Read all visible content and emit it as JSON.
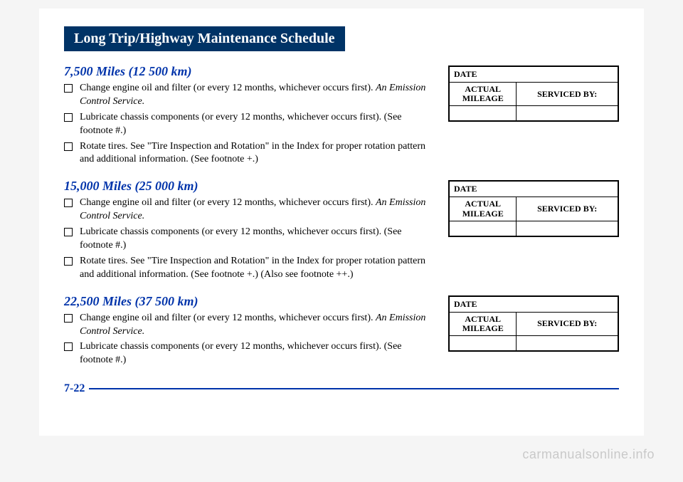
{
  "title": "Long Trip/Highway Maintenance Schedule",
  "pageNumber": "7-22",
  "watermark": "carmanualsonline.info",
  "recordLabels": {
    "date": "DATE",
    "mileage": "ACTUAL MILEAGE",
    "servicedBy": "SERVICED BY:"
  },
  "sections": [
    {
      "heading": "7,500 Miles (12 500 km)",
      "items": [
        {
          "text": "Change engine oil and filter (or every 12 months, whichever occurs first).",
          "note": "An Emission Control Service."
        },
        {
          "text": "Lubricate chassis components (or every 12 months, whichever occurs first). (See footnote #.)"
        },
        {
          "text": "Rotate tires. See \"Tire Inspection and Rotation\" in the Index for proper rotation pattern and additional information. (See footnote +.)"
        }
      ]
    },
    {
      "heading": "15,000 Miles (25 000 km)",
      "items": [
        {
          "text": "Change engine oil and filter (or every 12 months, whichever occurs first).",
          "note": "An Emission Control Service."
        },
        {
          "text": "Lubricate chassis components (or every 12 months, whichever occurs first). (See footnote #.)"
        },
        {
          "text": "Rotate tires. See \"Tire Inspection and Rotation\" in the Index for proper rotation pattern and additional information. (See footnote +.) (Also see footnote ++.)"
        }
      ]
    },
    {
      "heading": "22,500 Miles (37 500 km)",
      "items": [
        {
          "text": "Change engine oil and filter (or every 12 months, whichever occurs first).",
          "note": "An Emission Control Service."
        },
        {
          "text": "Lubricate chassis components (or every 12 months, whichever occurs first). (See footnote #.)"
        }
      ]
    }
  ]
}
